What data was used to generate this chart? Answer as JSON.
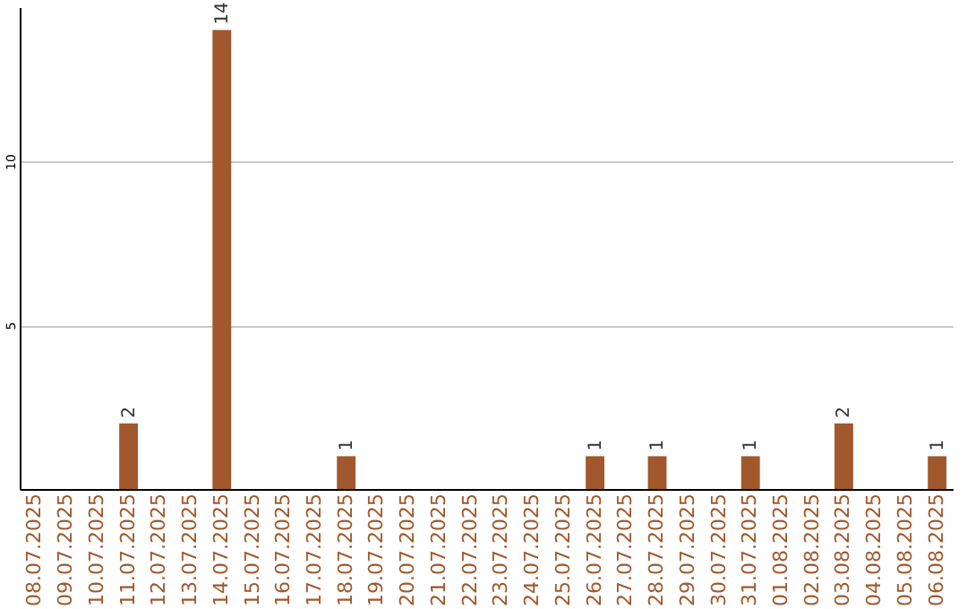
{
  "chart_data": {
    "type": "bar",
    "categories": [
      "08.07.2025",
      "09.07.2025",
      "10.07.2025",
      "11.07.2025",
      "12.07.2025",
      "13.07.2025",
      "14.07.2025",
      "15.07.2025",
      "16.07.2025",
      "17.07.2025",
      "18.07.2025",
      "19.07.2025",
      "20.07.2025",
      "21.07.2025",
      "22.07.2025",
      "23.07.2025",
      "24.07.2025",
      "25.07.2025",
      "26.07.2025",
      "27.07.2025",
      "28.07.2025",
      "29.07.2025",
      "30.07.2025",
      "31.07.2025",
      "01.08.2025",
      "02.08.2025",
      "03.08.2025",
      "04.08.2025",
      "05.08.2025",
      "06.08.2025"
    ],
    "values": [
      0,
      0,
      0,
      2,
      0,
      0,
      14,
      0,
      0,
      0,
      1,
      0,
      0,
      0,
      0,
      0,
      0,
      0,
      1,
      0,
      1,
      0,
      0,
      1,
      0,
      0,
      2,
      0,
      0,
      1
    ],
    "value_labels": [
      null,
      null,
      null,
      "2",
      null,
      null,
      "14",
      null,
      null,
      null,
      "1",
      null,
      null,
      null,
      null,
      null,
      null,
      null,
      "1",
      null,
      "1",
      null,
      null,
      "1",
      null,
      null,
      "2",
      null,
      null,
      "1"
    ],
    "color": "#a0582c",
    "ylim": [
      0,
      14.7
    ],
    "yticks": [
      5,
      10
    ],
    "grid": "y"
  }
}
